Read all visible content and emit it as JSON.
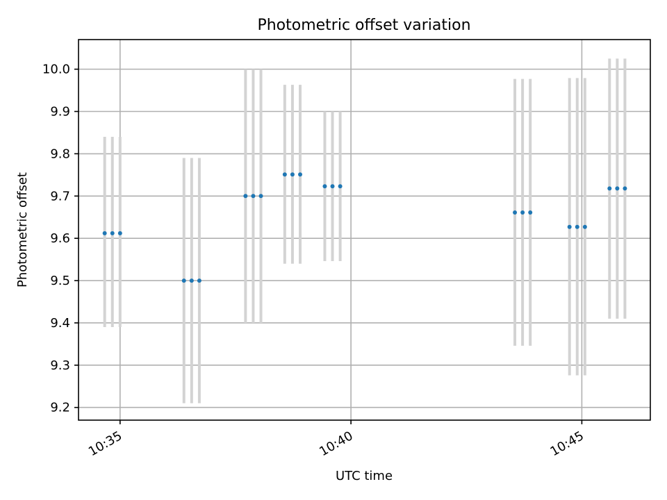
{
  "chart_data": {
    "type": "scatter",
    "title": "Photometric offset variation",
    "xlabel": "UTC time",
    "ylabel": "Photometric offset",
    "x_axis": {
      "kind": "time",
      "range": [
        "10:34:06",
        "10:46:29"
      ],
      "ticks": [
        "10:35",
        "10:40",
        "10:45"
      ]
    },
    "y_axis": {
      "range": [
        9.17,
        10.07
      ],
      "ticks": [
        9.2,
        9.3,
        9.4,
        9.5,
        9.6,
        9.7,
        9.8,
        9.9,
        10.0
      ],
      "tick_labels": [
        "9.2",
        "9.3",
        "9.4",
        "9.5",
        "9.6",
        "9.7",
        "9.8",
        "9.9",
        "10.0"
      ]
    },
    "grid": true,
    "marker_color": "#1f77b4",
    "errorbar_color": "#d3d3d3",
    "points": [
      {
        "t": "10:34:40",
        "y": 9.612,
        "lo": 9.39,
        "hi": 9.84
      },
      {
        "t": "10:34:50",
        "y": 9.612,
        "lo": 9.39,
        "hi": 9.84
      },
      {
        "t": "10:35:00",
        "y": 9.612,
        "lo": 9.39,
        "hi": 9.84
      },
      {
        "t": "10:36:23",
        "y": 9.5,
        "lo": 9.21,
        "hi": 9.79
      },
      {
        "t": "10:36:33",
        "y": 9.5,
        "lo": 9.21,
        "hi": 9.79
      },
      {
        "t": "10:36:43",
        "y": 9.5,
        "lo": 9.21,
        "hi": 9.79
      },
      {
        "t": "10:37:43",
        "y": 9.7,
        "lo": 9.4,
        "hi": 10.0
      },
      {
        "t": "10:37:53",
        "y": 9.7,
        "lo": 9.4,
        "hi": 10.0
      },
      {
        "t": "10:38:03",
        "y": 9.7,
        "lo": 9.4,
        "hi": 10.0
      },
      {
        "t": "10:38:34",
        "y": 9.751,
        "lo": 9.54,
        "hi": 9.963
      },
      {
        "t": "10:38:44",
        "y": 9.751,
        "lo": 9.54,
        "hi": 9.963
      },
      {
        "t": "10:38:54",
        "y": 9.751,
        "lo": 9.54,
        "hi": 9.963
      },
      {
        "t": "10:39:26",
        "y": 9.723,
        "lo": 9.546,
        "hi": 9.9
      },
      {
        "t": "10:39:36",
        "y": 9.723,
        "lo": 9.546,
        "hi": 9.9
      },
      {
        "t": "10:39:46",
        "y": 9.723,
        "lo": 9.546,
        "hi": 9.9
      },
      {
        "t": "10:43:33",
        "y": 9.661,
        "lo": 9.346,
        "hi": 9.977
      },
      {
        "t": "10:43:43",
        "y": 9.661,
        "lo": 9.346,
        "hi": 9.977
      },
      {
        "t": "10:43:53",
        "y": 9.661,
        "lo": 9.346,
        "hi": 9.977
      },
      {
        "t": "10:44:44",
        "y": 9.627,
        "lo": 9.276,
        "hi": 9.979
      },
      {
        "t": "10:44:54",
        "y": 9.627,
        "lo": 9.276,
        "hi": 9.979
      },
      {
        "t": "10:45:04",
        "y": 9.627,
        "lo": 9.276,
        "hi": 9.979
      },
      {
        "t": "10:45:36",
        "y": 9.718,
        "lo": 9.41,
        "hi": 10.025
      },
      {
        "t": "10:45:46",
        "y": 9.718,
        "lo": 9.41,
        "hi": 10.025
      },
      {
        "t": "10:45:56",
        "y": 9.718,
        "lo": 9.41,
        "hi": 10.025
      }
    ]
  }
}
